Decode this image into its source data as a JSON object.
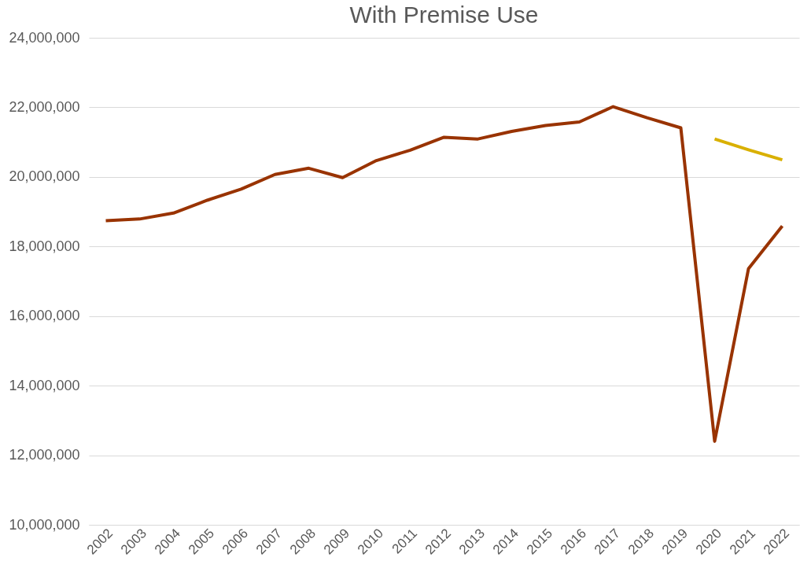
{
  "chart_data": {
    "type": "line",
    "title": "With Premise Use",
    "categories": [
      "2002",
      "2003",
      "2004",
      "2005",
      "2006",
      "2007",
      "2008",
      "2009",
      "2010",
      "2011",
      "2012",
      "2013",
      "2014",
      "2015",
      "2016",
      "2017",
      "2018",
      "2019",
      "2020",
      "2021",
      "2022"
    ],
    "series": [
      {
        "color": "#993300",
        "values": [
          18740000,
          18790000,
          18960000,
          19330000,
          19650000,
          20070000,
          20250000,
          19980000,
          20470000,
          20770000,
          21140000,
          21090000,
          21310000,
          21480000,
          21580000,
          22020000,
          21700000,
          21410000,
          12400000,
          17360000,
          18590000
        ]
      },
      {
        "color": "#d9b000",
        "values": [
          null,
          null,
          null,
          null,
          null,
          null,
          null,
          null,
          null,
          null,
          null,
          null,
          null,
          null,
          null,
          null,
          null,
          null,
          21090000,
          20780000,
          20490000
        ]
      }
    ],
    "ylim": [
      10000000,
      24000000
    ],
    "yticks": [
      {
        "value": 10000000,
        "label": "10,000,000"
      },
      {
        "value": 12000000,
        "label": "12,000,000"
      },
      {
        "value": 14000000,
        "label": "14,000,000"
      },
      {
        "value": 16000000,
        "label": "16,000,000"
      },
      {
        "value": 18000000,
        "label": "18,000,000"
      },
      {
        "value": 20000000,
        "label": "20,000,000"
      },
      {
        "value": 22000000,
        "label": "22,000,000"
      },
      {
        "value": 24000000,
        "label": "24,000,000"
      }
    ],
    "grid": "y",
    "legend": false,
    "marker": "none",
    "line_style": "solid"
  }
}
